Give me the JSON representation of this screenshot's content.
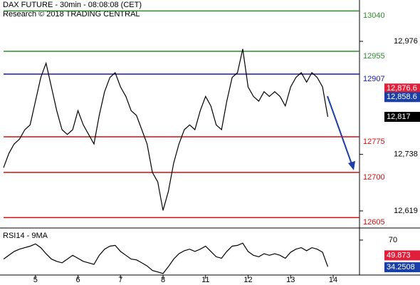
{
  "chart_data": {
    "type": "line",
    "title": "DAX FUTURE - 30min - 08:08:08 (CET)",
    "subtitle": "Research © 2018 TRADING CENTRAL",
    "categories": [
      null,
      null,
      null,
      null,
      null,
      null,
      "5",
      null,
      null,
      null,
      null,
      null,
      null,
      null,
      "6",
      null,
      null,
      null,
      null,
      null,
      null,
      null,
      "7",
      null,
      null,
      null,
      null,
      null,
      null,
      null,
      "8",
      null,
      null,
      null,
      null,
      null,
      null,
      null,
      "11",
      null,
      null,
      null,
      null,
      null,
      null,
      null,
      "12",
      null,
      null,
      null,
      null,
      null,
      null,
      null,
      "13",
      null,
      null,
      null,
      null,
      null,
      null,
      null,
      "14"
    ],
    "series": [
      {
        "color": "#000000",
        "values": [
          12710,
          12740,
          12760,
          12770,
          12790,
          12800,
          12850,
          12900,
          12930,
          12880,
          12830,
          12790,
          12780,
          12790,
          12830,
          12800,
          12780,
          12760,
          12820,
          12870,
          12900,
          12910,
          12880,
          12860,
          12830,
          12820,
          12790,
          12760,
          12700,
          12680,
          12620,
          12660,
          12720,
          12760,
          12790,
          12800,
          12790,
          12830,
          12860,
          12840,
          12800,
          12790,
          12850,
          12900,
          12910,
          12960,
          12880,
          12860,
          12850,
          12870,
          12860,
          12870,
          12860,
          12840,
          12880,
          12900,
          12910,
          12890,
          12910,
          12900,
          12880,
          12817,
          null
        ]
      }
    ],
    "ylim": [
      12586,
      13063
    ],
    "yticks": [
      {
        "value": 12976,
        "label": "12,976"
      },
      {
        "value": 12738,
        "label": "12,738"
      },
      {
        "value": 12619,
        "label": "12,619"
      }
    ],
    "levels": [
      {
        "value": 13040,
        "color": "#2e8b2e"
      },
      {
        "value": 12955,
        "color": "#2e8b2e"
      },
      {
        "value": 12907,
        "color": "#1a1aa6"
      },
      {
        "value": 12775,
        "color": "#cc1111"
      },
      {
        "value": 12700,
        "color": "#cc1111"
      },
      {
        "value": 12605,
        "color": "#cc1111"
      }
    ],
    "price_tags": [
      {
        "value": 12876.6,
        "label": "12,876.6",
        "color": "#e0203a"
      },
      {
        "value": 12858.6,
        "label": "12,858.6",
        "color": "#1a3fa6"
      },
      {
        "value": 12817,
        "label": "12,817",
        "color": "#000000"
      }
    ],
    "rsi": {
      "title": "RSI14 - 9MA",
      "ylim": [
        24,
        84
      ],
      "yticks": [
        70
      ],
      "color": "#000000",
      "values": [
        45,
        50,
        55,
        58,
        60,
        62,
        65,
        60,
        52,
        45,
        42,
        40,
        45,
        50,
        46,
        42,
        40,
        38,
        50,
        58,
        62,
        63,
        55,
        50,
        45,
        44,
        40,
        36,
        30,
        28,
        26,
        35,
        45,
        52,
        56,
        58,
        55,
        58,
        62,
        55,
        48,
        46,
        55,
        62,
        63,
        66,
        55,
        50,
        48,
        52,
        50,
        52,
        50,
        46,
        54,
        58,
        60,
        56,
        60,
        58,
        54,
        35,
        null
      ],
      "tags": [
        {
          "value": 49.873,
          "label": "49.873",
          "color": "#e0203a"
        },
        {
          "value": 34.2508,
          "label": "34.2508",
          "color": "#1a3fa6"
        }
      ]
    }
  }
}
